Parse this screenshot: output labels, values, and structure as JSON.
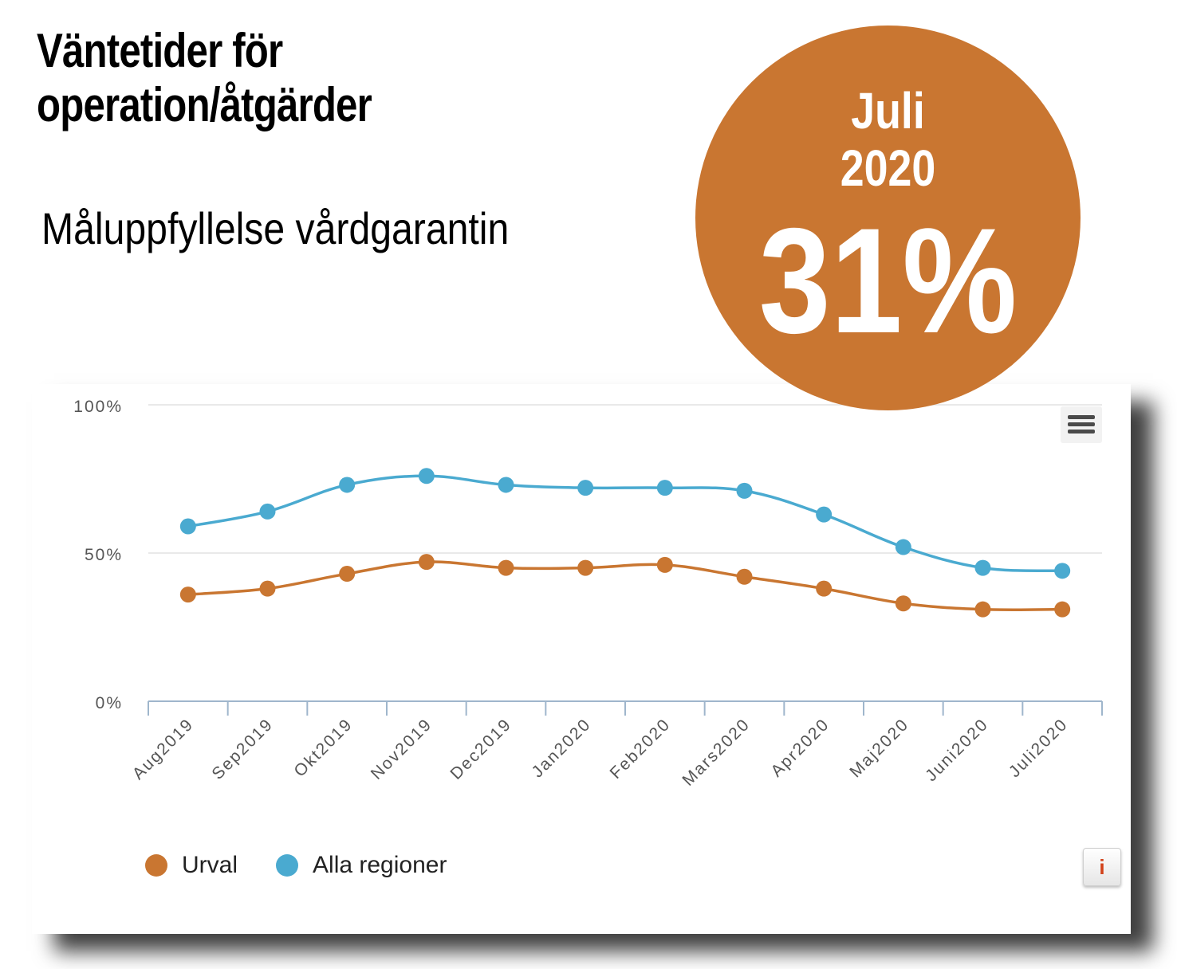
{
  "header": {
    "title_line1": "Väntetider för",
    "title_line2": "operation/åtgärder",
    "subtitle": "Måluppfyllelse vårdgarantin"
  },
  "badge": {
    "month": "Juli",
    "year": "2020",
    "value": "31%",
    "color": "#c97631"
  },
  "chart_data": {
    "type": "line",
    "categories": [
      "Aug2019",
      "Sep2019",
      "Okt2019",
      "Nov2019",
      "Dec2019",
      "Jan2020",
      "Feb2020",
      "Mars2020",
      "Apr2020",
      "Maj2020",
      "Juni2020",
      "Juli2020"
    ],
    "series": [
      {
        "name": "Urval",
        "color": "#c97631",
        "values": [
          36,
          38,
          43,
          47,
          45,
          45,
          46,
          42,
          38,
          33,
          31,
          31
        ]
      },
      {
        "name": "Alla regioner",
        "color": "#4aaad0",
        "values": [
          59,
          64,
          73,
          76,
          73,
          72,
          72,
          71,
          63,
          52,
          45,
          44
        ]
      }
    ],
    "yticks": [
      "0%",
      "50%",
      "100%"
    ],
    "ytick_values": [
      0,
      50,
      100
    ],
    "ylim": [
      0,
      100
    ],
    "grid": true,
    "legend_position": "bottom-left"
  },
  "controls": {
    "info_label": "i"
  }
}
